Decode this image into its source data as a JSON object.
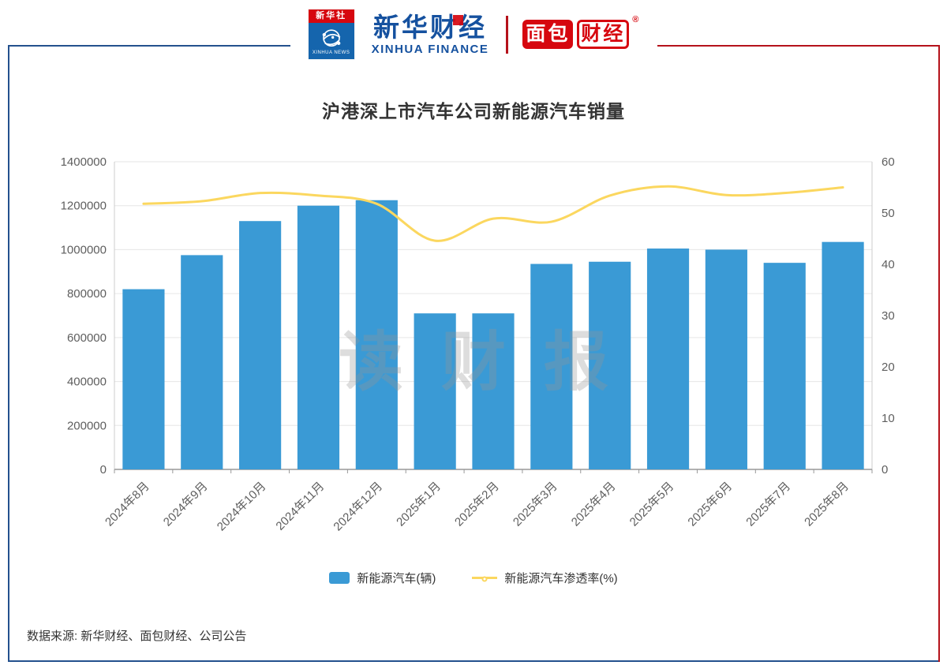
{
  "colors": {
    "red": "#D6070F",
    "deep_red": "#B5121B",
    "frame_blue": "#24518E",
    "frame_red": "#B5121B",
    "logo_blue": "#15519F",
    "xinhua_body_blue": "#1565AD",
    "bar_blue": "#3A9AD5",
    "line_yellow": "#FBD75F"
  },
  "header": {
    "xinhua_news": {
      "cn": "新华社",
      "en": "XINHUA NEWS"
    },
    "xinhua_finance": {
      "cn": "新华财经",
      "en": "XINHUA FINANCE"
    },
    "mianbao_finance": {
      "part1": "面包",
      "part2": "财经",
      "reg": "®"
    }
  },
  "chart_data": {
    "type": "combo",
    "title": "沪港深上市汽车公司新能源汽车销量",
    "categories": [
      "2024年8月",
      "2024年9月",
      "2024年10月",
      "2024年11月",
      "2024年12月",
      "2025年1月",
      "2025年2月",
      "2025年3月",
      "2025年4月",
      "2025年5月",
      "2025年6月",
      "2025年7月",
      "2025年8月"
    ],
    "series": [
      {
        "name": "新能源汽车(辆)",
        "type": "bar",
        "axis": "left",
        "color": "#3A9AD5",
        "values": [
          820000,
          975000,
          1130000,
          1200000,
          1225000,
          710000,
          710000,
          935000,
          945000,
          1005000,
          1000000,
          940000,
          1035000
        ]
      },
      {
        "name": "新能源汽车渗透率(%)",
        "type": "line",
        "axis": "right",
        "color": "#FBD75F",
        "values": [
          51.8,
          52.3,
          53.9,
          53.4,
          51.8,
          44.6,
          48.9,
          48.3,
          53.4,
          55.2,
          53.5,
          53.9,
          55.0
        ]
      }
    ],
    "left_axis": {
      "min": 0,
      "max": 1400000,
      "step": 200000
    },
    "right_axis": {
      "min": 0,
      "max": 60,
      "step": 10
    },
    "grid": true,
    "legend_position": "bottom",
    "x_label_rotation": -45
  },
  "watermark": "读财报",
  "source": "数据来源: 新华财经、面包财经、公司公告"
}
